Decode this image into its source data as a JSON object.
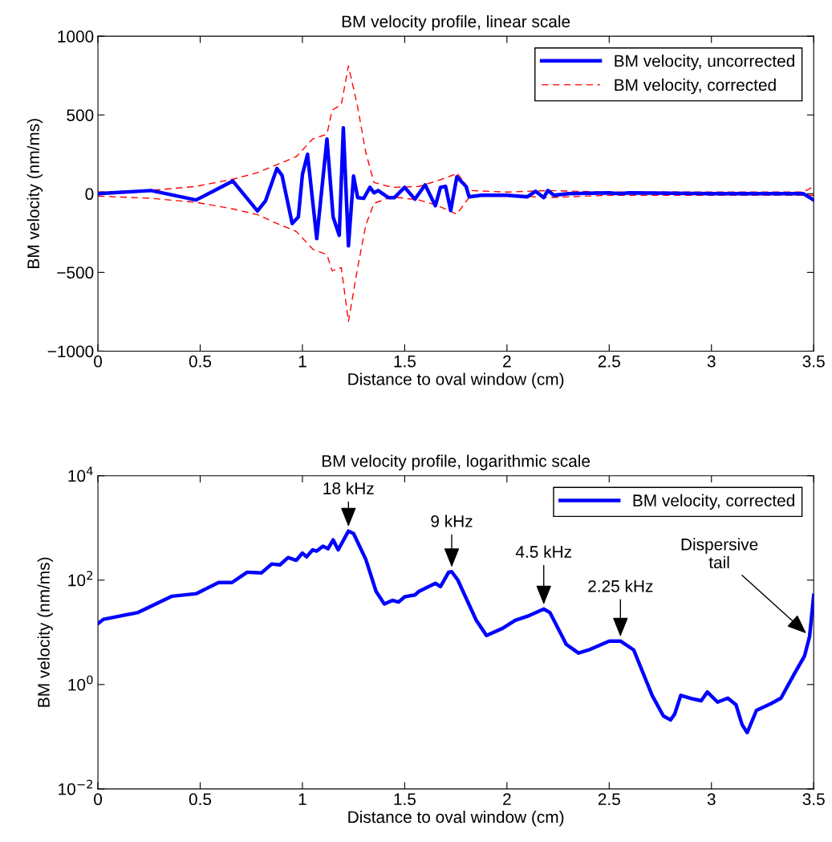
{
  "chart_data": [
    {
      "type": "line",
      "title": "BM velocity profile, linear scale",
      "xlabel": "Distance to oval window (cm)",
      "ylabel": "BM velocity (nm/ms)",
      "xlim": [
        0,
        3.5
      ],
      "xticks": [
        0,
        0.5,
        1,
        1.5,
        2,
        2.5,
        3,
        3.5
      ],
      "ylim": [
        -1000,
        1000
      ],
      "yticks": [
        {
          "value": -1000,
          "label": "−1000"
        },
        {
          "value": -500,
          "label": "−500"
        },
        0,
        500,
        1000
      ],
      "grid": false,
      "legend": "top right",
      "series": [
        {
          "name": "BM velocity, uncorrected",
          "color": "#0000ff",
          "line_style": "solid",
          "x": [
            0,
            0.26,
            0.48,
            0.66,
            0.78,
            0.82,
            0.875,
            0.9,
            0.95,
            0.98,
            1.0,
            1.025,
            1.07,
            1.12,
            1.15,
            1.18,
            1.2,
            1.225,
            1.25,
            1.27,
            1.3,
            1.33,
            1.35,
            1.37,
            1.42,
            1.45,
            1.5,
            1.55,
            1.6,
            1.65,
            1.675,
            1.7,
            1.725,
            1.755,
            1.8,
            1.815,
            1.875,
            2.0,
            2.1,
            2.14,
            2.18,
            2.2,
            2.23,
            2.3,
            2.5,
            2.55,
            2.6,
            3.0,
            3.45,
            3.5
          ],
          "values": [
            0,
            20,
            -40,
            80,
            -110,
            -45,
            160,
            117,
            -190,
            -148,
            122,
            250,
            -285,
            347,
            -148,
            -265,
            418,
            -332,
            112,
            -25,
            -30,
            40,
            5,
            20,
            -25,
            -25,
            40,
            -35,
            56,
            -77,
            40,
            46,
            -107,
            107,
            46,
            -20,
            -10,
            -10,
            -20,
            15,
            -25,
            20,
            -10,
            0,
            5,
            0,
            5,
            0,
            0,
            -40
          ]
        },
        {
          "name": "BM velocity, corrected",
          "color": "#ff0000",
          "line_style": "dashed",
          "x": [
            0,
            0.26,
            0.48,
            0.66,
            0.78,
            0.875,
            0.97,
            1.05,
            1.12,
            1.145,
            1.19,
            1.225,
            1.27,
            1.31,
            1.35,
            1.44,
            1.57,
            1.66,
            1.745,
            1.755,
            1.82,
            2.0,
            2.2,
            2.5,
            3.45,
            3.5
          ],
          "values": [
            10,
            20,
            46,
            92,
            133,
            184,
            235,
            347,
            378,
            530,
            566,
            811,
            551,
            260,
            71,
            40,
            46,
            82,
            122,
            133,
            20,
            10,
            20,
            10,
            10,
            45
          ]
        },
        {
          "color": "#ff0000",
          "line_style": "dashed",
          "x": [
            0,
            0.26,
            0.48,
            0.66,
            0.78,
            0.875,
            0.97,
            1.05,
            1.12,
            1.145,
            1.19,
            1.225,
            1.27,
            1.31,
            1.35,
            1.44,
            1.57,
            1.66,
            1.755,
            1.82,
            2.0,
            2.2,
            2.5,
            3.45,
            3.5
          ],
          "values": [
            -15,
            -30,
            -55,
            -97,
            -133,
            -189,
            -240,
            -352,
            -388,
            -490,
            -470,
            -811,
            -470,
            -199,
            -61,
            -20,
            -40,
            -75,
            -130,
            -15,
            -10,
            -25,
            -10,
            -10,
            -10
          ]
        }
      ]
    },
    {
      "type": "line",
      "title": "BM velocity profile, logarithmic scale",
      "xlabel": "Distance to oval window (cm)",
      "ylabel": "BM velocity (nm/ms)",
      "log": "y",
      "xlim": [
        0,
        3.5
      ],
      "xticks": [
        0,
        0.5,
        1,
        1.5,
        2,
        2.5,
        3,
        3.5
      ],
      "ylim": [
        0.01,
        10000
      ],
      "yticks": [
        {
          "value": 0.01,
          "label": "10$^{−2}$"
        },
        {
          "value": 1,
          "label": "10$^{0}$"
        },
        {
          "value": 100,
          "label": "10$^{2}$"
        },
        {
          "value": 10000,
          "label": "10$^{4}$"
        }
      ],
      "grid": false,
      "legend": "top right",
      "series": [
        {
          "name": "BM velocity, corrected",
          "color": "#0000ff",
          "line_style": "solid",
          "x": [
            0,
            0.026,
            0.196,
            0.36,
            0.48,
            0.59,
            0.655,
            0.73,
            0.8,
            0.85,
            0.89,
            0.93,
            0.97,
            1.0,
            1.02,
            1.05,
            1.07,
            1.1,
            1.125,
            1.15,
            1.175,
            1.225,
            1.25,
            1.31,
            1.36,
            1.4,
            1.44,
            1.47,
            1.5,
            1.55,
            1.57,
            1.65,
            1.675,
            1.715,
            1.73,
            1.76,
            1.85,
            1.9,
            1.98,
            2.04,
            2.11,
            2.18,
            2.21,
            2.29,
            2.35,
            2.4,
            2.5,
            2.555,
            2.62,
            2.71,
            2.765,
            2.8,
            2.82,
            2.85,
            2.91,
            2.95,
            2.98,
            3.03,
            3.08,
            3.12,
            3.15,
            3.175,
            3.22,
            3.29,
            3.34,
            3.405,
            3.455,
            3.48,
            3.5
          ],
          "values": [
            14.7,
            17.7,
            24,
            49,
            55,
            90,
            90,
            142,
            138,
            204,
            196,
            270,
            240,
            330,
            280,
            380,
            360,
            445,
            400,
            590,
            380,
            870,
            780,
            250,
            61,
            35,
            41,
            38,
            48,
            52,
            61,
            87,
            75,
            142,
            145,
            100,
            17,
            8.7,
            12,
            17,
            21,
            28,
            24,
            5.9,
            4.0,
            4.6,
            6.8,
            6.8,
            4.6,
            0.62,
            0.25,
            0.21,
            0.27,
            0.62,
            0.53,
            0.49,
            0.72,
            0.46,
            0.55,
            0.41,
            0.17,
            0.12,
            0.32,
            0.43,
            0.55,
            1.6,
            3.5,
            8.4,
            51
          ]
        }
      ],
      "annotations": [
        {
          "text": "18 kHz",
          "x": 1.225,
          "y": 870
        },
        {
          "text": "9 kHz",
          "x": 1.73,
          "y": 145
        },
        {
          "text": "4.5 kHz",
          "x": 2.18,
          "y": 28
        },
        {
          "text": "2.25 kHz",
          "x": 2.555,
          "y": 6.8
        },
        {
          "text": "Dispersive\ntail",
          "x": 3.48,
          "y": 8.4
        }
      ]
    }
  ]
}
